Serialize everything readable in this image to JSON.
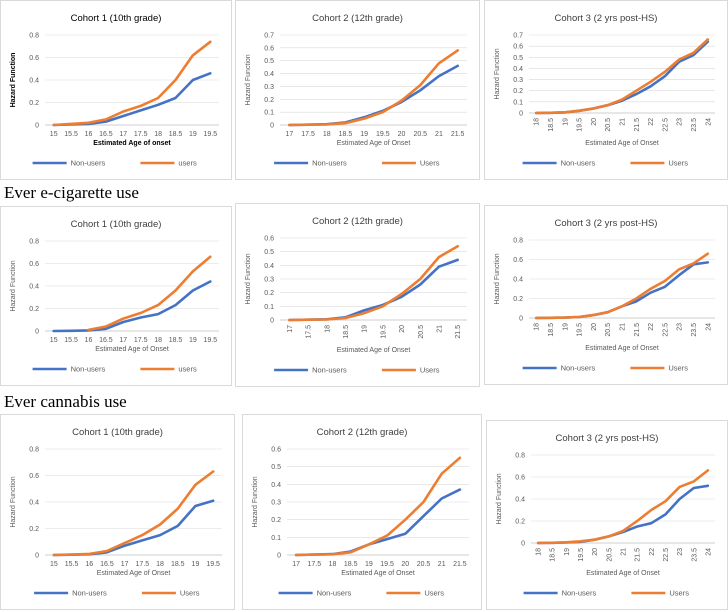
{
  "sections": [
    {
      "heading": ""
    },
    {
      "heading": "Ever e-cigarette use"
    },
    {
      "heading": "Ever cannabis use"
    }
  ],
  "colors": {
    "non_users": "#4472c4",
    "users": "#ed7d31",
    "axis": "#bfbfbf",
    "grid": "#d9d9d9"
  },
  "chart_data": [
    {
      "type": "line",
      "section": 0,
      "cohort": 1,
      "title": "Cohort 1 (10th grade)",
      "xlabel": "Estimated Age of onset",
      "ylabel": "Hazard Function",
      "categories": [
        "15",
        "15.5",
        "16",
        "16.5",
        "17",
        "17.5",
        "18",
        "18.5",
        "19",
        "19.5"
      ],
      "ylim": [
        0,
        0.8
      ],
      "yticks": [
        "0",
        "0.2",
        "0.4",
        "0.6",
        "0.8"
      ],
      "series": [
        {
          "name": "Non-users",
          "values": [
            0,
            0.005,
            0.01,
            0.03,
            0.08,
            0.13,
            0.18,
            0.24,
            0.4,
            0.46
          ]
        },
        {
          "name": "users",
          "values": [
            0,
            0.01,
            0.02,
            0.05,
            0.12,
            0.17,
            0.24,
            0.4,
            0.62,
            0.74
          ]
        }
      ]
    },
    {
      "type": "line",
      "section": 0,
      "cohort": 2,
      "title": "Cohort 2 (12th grade)",
      "xlabel": "Estimated Age of Onset",
      "ylabel": "Hazard Function",
      "categories": [
        "17",
        "17.5",
        "18",
        "18.5",
        "19",
        "19.5",
        "20",
        "20.5",
        "21",
        "21.5"
      ],
      "ylim": [
        0,
        0.7
      ],
      "yticks": [
        "0",
        "0.1",
        "0.2",
        "0.3",
        "0.4",
        "0.5",
        "0.6",
        "0.7"
      ],
      "series": [
        {
          "name": "Non-users",
          "values": [
            0,
            0.002,
            0.006,
            0.02,
            0.06,
            0.11,
            0.18,
            0.27,
            0.38,
            0.46
          ]
        },
        {
          "name": "Users",
          "values": [
            0,
            0.002,
            0.005,
            0.015,
            0.05,
            0.1,
            0.19,
            0.31,
            0.48,
            0.58
          ]
        }
      ]
    },
    {
      "type": "line",
      "section": 0,
      "cohort": 3,
      "title": "Cohort 3 (2 yrs post-HS)",
      "xlabel": "Estimated Age of Onset",
      "ylabel": "Hazard Function",
      "categories": [
        "18",
        "18.5",
        "19",
        "19.5",
        "20",
        "20.5",
        "21",
        "21.5",
        "22",
        "22.5",
        "23",
        "23.5",
        "24"
      ],
      "ylim": [
        0,
        0.7
      ],
      "yticks": [
        "0",
        "0.1",
        "0.2",
        "0.3",
        "0.4",
        "0.5",
        "0.6",
        "0.7"
      ],
      "series": [
        {
          "name": "Non-users",
          "values": [
            0,
            0.002,
            0.005,
            0.02,
            0.04,
            0.07,
            0.11,
            0.17,
            0.24,
            0.33,
            0.46,
            0.52,
            0.64
          ]
        },
        {
          "name": "Users",
          "values": [
            0,
            0.002,
            0.006,
            0.02,
            0.04,
            0.07,
            0.12,
            0.2,
            0.28,
            0.37,
            0.48,
            0.54,
            0.66
          ]
        }
      ]
    },
    {
      "type": "line",
      "section": 1,
      "cohort": 1,
      "title": "Cohort 1 (10th grade)",
      "xlabel": "Estimated Age of Onset",
      "ylabel": "Hazard Function",
      "categories": [
        "15",
        "15.5",
        "16",
        "16.5",
        "17",
        "17.5",
        "18",
        "18.5",
        "19",
        "19.5"
      ],
      "ylim": [
        0,
        0.8
      ],
      "yticks": [
        "0",
        "0.2",
        "0.4",
        "0.6",
        "0.8"
      ],
      "series": [
        {
          "name": "Non-users",
          "values": [
            0,
            0.002,
            0.005,
            0.02,
            0.08,
            0.12,
            0.15,
            0.23,
            0.36,
            0.44
          ]
        },
        {
          "name": "users",
          "values": [
            null,
            null,
            0.01,
            0.04,
            0.11,
            0.16,
            0.23,
            0.36,
            0.53,
            0.66
          ]
        }
      ]
    },
    {
      "type": "line",
      "section": 1,
      "cohort": 2,
      "title": "Cohort 2 (12th grade)",
      "xlabel": "Estimated Age of Onset",
      "ylabel": "Hazard Function",
      "categories": [
        "17",
        "17.5",
        "18",
        "18.5",
        "19",
        "19.5",
        "20",
        "20.5",
        "21",
        "21.5"
      ],
      "ylim": [
        0,
        0.6
      ],
      "yticks": [
        "0",
        "0.1",
        "0.2",
        "0.3",
        "0.4",
        "0.5",
        "0.6"
      ],
      "series": [
        {
          "name": "Non-users",
          "values": [
            0,
            0.002,
            0.005,
            0.02,
            0.07,
            0.11,
            0.17,
            0.26,
            0.39,
            0.44
          ]
        },
        {
          "name": "Users",
          "values": [
            0,
            0.002,
            0.004,
            0.015,
            0.05,
            0.1,
            0.19,
            0.3,
            0.46,
            0.54
          ]
        }
      ]
    },
    {
      "type": "line",
      "section": 1,
      "cohort": 3,
      "title": "Cohort 3 (2 yrs post-HS)",
      "xlabel": "Estimated Age of Onset",
      "ylabel": "Hazard Function",
      "categories": [
        "18",
        "18.5",
        "19",
        "19.5",
        "20",
        "20.5",
        "21",
        "21.5",
        "22",
        "22.5",
        "23",
        "23.5",
        "24"
      ],
      "ylim": [
        0,
        0.8
      ],
      "yticks": [
        "0",
        "0.2",
        "0.4",
        "0.6",
        "0.8"
      ],
      "series": [
        {
          "name": "Non-users",
          "values": [
            0,
            0.002,
            0.004,
            0.01,
            0.03,
            0.06,
            0.12,
            0.17,
            0.26,
            0.32,
            0.44,
            0.55,
            0.57
          ]
        },
        {
          "name": "Users",
          "values": [
            0,
            0.002,
            0.004,
            0.01,
            0.03,
            0.06,
            0.12,
            0.2,
            0.3,
            0.38,
            0.5,
            0.56,
            0.66
          ]
        }
      ]
    },
    {
      "type": "line",
      "section": 2,
      "cohort": 1,
      "title": "Cohort 1 (10th grade)",
      "xlabel": "Estimated Age of Onset",
      "ylabel": "Hazard Function",
      "categories": [
        "15",
        "15.5",
        "16",
        "16.5",
        "17",
        "17.5",
        "18",
        "18.5",
        "19",
        "19.5"
      ],
      "ylim": [
        0,
        0.8
      ],
      "yticks": [
        "0",
        "0.2",
        "0.4",
        "0.6",
        "0.8"
      ],
      "series": [
        {
          "name": "Non-users",
          "values": [
            0,
            0.002,
            0.005,
            0.02,
            0.07,
            0.11,
            0.15,
            0.22,
            0.37,
            0.41
          ]
        },
        {
          "name": "Users",
          "values": [
            0,
            0.003,
            0.008,
            0.03,
            0.09,
            0.15,
            0.23,
            0.35,
            0.53,
            0.63
          ]
        }
      ]
    },
    {
      "type": "line",
      "section": 2,
      "cohort": 2,
      "title": "Cohort 2 (12th grade)",
      "xlabel": "Estimated Age of Onset",
      "ylabel": "Hazard Function",
      "categories": [
        "17",
        "17.5",
        "18",
        "18.5",
        "19",
        "19.5",
        "20",
        "20.5",
        "21",
        "21.5"
      ],
      "ylim": [
        0,
        0.6
      ],
      "yticks": [
        "0",
        "0.1",
        "0.2",
        "0.3",
        "0.4",
        "0.5",
        "0.6"
      ],
      "series": [
        {
          "name": "Non-users",
          "values": [
            0,
            0.002,
            0.005,
            0.02,
            0.06,
            0.09,
            0.12,
            0.22,
            0.32,
            0.37
          ]
        },
        {
          "name": "Users",
          "values": [
            0,
            0.002,
            0.004,
            0.015,
            0.06,
            0.11,
            0.2,
            0.3,
            0.46,
            0.55
          ]
        }
      ]
    },
    {
      "type": "line",
      "section": 2,
      "cohort": 3,
      "title": "Cohort 3 (2 yrs post-HS)",
      "xlabel": "Estimated Age of Onset",
      "ylabel": "Hazard Function",
      "categories": [
        "18",
        "18.5",
        "19",
        "19.5",
        "20",
        "20.5",
        "21",
        "21.5",
        "22",
        "22.5",
        "23",
        "23.5",
        "24"
      ],
      "ylim": [
        0,
        0.8
      ],
      "yticks": [
        "0",
        "0.2",
        "0.4",
        "0.6",
        "0.8"
      ],
      "series": [
        {
          "name": "Non-users",
          "values": [
            0,
            0.002,
            0.005,
            0.01,
            0.03,
            0.06,
            0.1,
            0.15,
            0.18,
            0.26,
            0.4,
            0.5,
            0.52
          ]
        },
        {
          "name": "Users",
          "values": [
            0,
            0.002,
            0.006,
            0.015,
            0.03,
            0.06,
            0.11,
            0.2,
            0.3,
            0.38,
            0.51,
            0.56,
            0.66
          ]
        }
      ]
    }
  ]
}
